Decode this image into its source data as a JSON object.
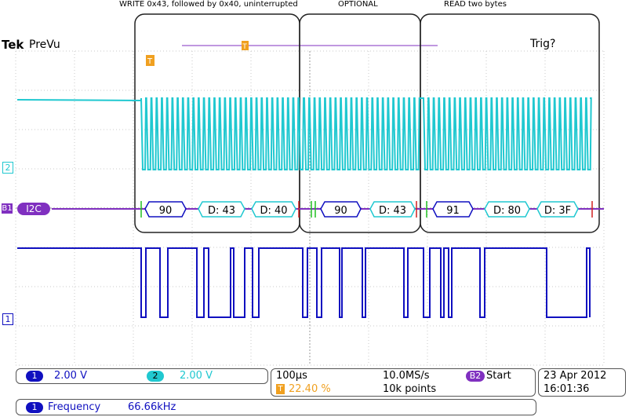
{
  "annotations": {
    "write": "WRITE 0x43, followed by 0x40, uninterrupted",
    "optional": "OPTIONAL",
    "read": "READ two bytes"
  },
  "header": {
    "brand": "Tek",
    "mode": "PreVu",
    "trigger_status": "Trig?"
  },
  "channels": {
    "ch2_marker": "2",
    "ch1_marker": "1",
    "bus_marker": "B1",
    "bus_name": "I2C"
  },
  "decode_packets": [
    {
      "label": "90",
      "type": "address"
    },
    {
      "label": "D: 43",
      "type": "data"
    },
    {
      "label": "D: 40",
      "type": "data"
    },
    {
      "label": "90",
      "type": "address"
    },
    {
      "label": "D: 43",
      "type": "data"
    },
    {
      "label": "91",
      "type": "address"
    },
    {
      "label": "D: 80",
      "type": "data"
    },
    {
      "label": "D: 3F",
      "type": "data"
    }
  ],
  "status": {
    "ch1_num": "1",
    "ch1_scale": "2.00 V",
    "ch2_num": "2",
    "ch2_scale": "2.00 V",
    "timebase": "100µs",
    "sample_rate": "10.0MS/s",
    "trigger_pos": "22.40 %",
    "record_length": "10k points",
    "bus_num": "B2",
    "trigger_type": "Start",
    "date": "23 Apr 2012",
    "time": "16:01:36",
    "meas_num": "1",
    "meas_name": "Frequency",
    "meas_value": "66.66kHz"
  },
  "colors": {
    "ch1": "#1010c0",
    "ch2": "#20c8d0",
    "bus": "#8030c0",
    "trigger": "#f0a020"
  }
}
